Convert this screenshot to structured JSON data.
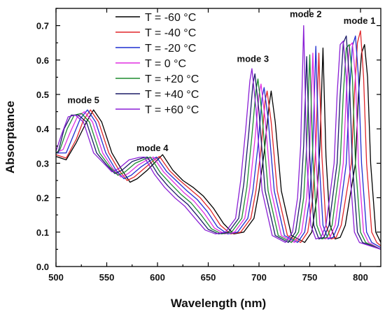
{
  "chart_data": {
    "type": "line",
    "title": "",
    "xlabel": "Wavelength (nm)",
    "ylabel": "Absorptance",
    "xlim": [
      500,
      820
    ],
    "ylim": [
      0.0,
      0.75
    ],
    "xticks": [
      500,
      550,
      600,
      650,
      700,
      750,
      800
    ],
    "yticks": [
      0.0,
      0.1,
      0.2,
      0.3,
      0.4,
      0.5,
      0.6,
      0.7
    ],
    "xtick_labels": [
      "500",
      "550",
      "600",
      "650",
      "700",
      "750",
      "800"
    ],
    "ytick_labels": [
      "0.0",
      "0.1",
      "0.2",
      "0.3",
      "0.4",
      "0.5",
      "0.6",
      "0.7"
    ],
    "grid": false,
    "legend_position": "top-left",
    "annotations": [
      {
        "text": "mode 5",
        "x": 527,
        "y": 0.475
      },
      {
        "text": "mode 4",
        "x": 595,
        "y": 0.335
      },
      {
        "text": "mode 3",
        "x": 694,
        "y": 0.595
      },
      {
        "text": "mode 2",
        "x": 746,
        "y": 0.725
      },
      {
        "text": "mode 1",
        "x": 799,
        "y": 0.705
      }
    ],
    "series": [
      {
        "name": "T = -60 °C",
        "color": "#000000",
        "x": [
          500,
          510,
          520,
          530,
          537,
          545,
          555,
          565,
          573,
          580,
          590,
          600,
          605,
          615,
          625,
          635,
          645,
          655,
          665,
          675,
          685,
          695,
          700,
          705,
          710,
          712,
          716,
          722,
          732,
          745,
          752,
          757,
          760,
          763,
          766,
          770,
          775,
          780,
          785,
          795,
          798,
          801,
          804,
          807,
          810,
          815,
          820
        ],
        "y": [
          0.32,
          0.31,
          0.36,
          0.42,
          0.455,
          0.42,
          0.33,
          0.28,
          0.245,
          0.255,
          0.28,
          0.31,
          0.325,
          0.28,
          0.25,
          0.23,
          0.205,
          0.17,
          0.125,
          0.095,
          0.1,
          0.14,
          0.22,
          0.33,
          0.47,
          0.51,
          0.42,
          0.22,
          0.09,
          0.07,
          0.1,
          0.2,
          0.35,
          0.635,
          0.32,
          0.12,
          0.08,
          0.085,
          0.12,
          0.3,
          0.5,
          0.62,
          0.645,
          0.55,
          0.3,
          0.1,
          0.07
        ]
      },
      {
        "name": "T = -40 °C",
        "color": "#e0262a",
        "x": [
          500,
          510,
          520,
          527,
          534,
          542,
          552,
          562,
          570,
          577,
          587,
          597,
          602,
          612,
          622,
          632,
          642,
          652,
          662,
          672,
          682,
          692,
          697,
          702,
          706,
          708,
          712,
          718,
          728,
          741,
          748,
          753,
          756,
          759,
          762,
          766,
          771,
          776,
          781,
          791,
          794,
          797,
          800,
          803,
          806,
          811,
          816,
          820
        ],
        "y": [
          0.325,
          0.315,
          0.37,
          0.425,
          0.455,
          0.42,
          0.33,
          0.28,
          0.25,
          0.26,
          0.285,
          0.31,
          0.32,
          0.278,
          0.25,
          0.225,
          0.2,
          0.165,
          0.12,
          0.095,
          0.1,
          0.14,
          0.22,
          0.34,
          0.48,
          0.51,
          0.42,
          0.22,
          0.09,
          0.07,
          0.1,
          0.2,
          0.35,
          0.62,
          0.32,
          0.12,
          0.08,
          0.085,
          0.12,
          0.3,
          0.5,
          0.65,
          0.685,
          0.55,
          0.3,
          0.1,
          0.07,
          0.06
        ]
      },
      {
        "name": "T = -20 °C",
        "color": "#1f2fd0",
        "x": [
          500,
          510,
          517,
          524,
          531,
          539,
          549,
          559,
          567,
          574,
          584,
          594,
          599,
          609,
          619,
          629,
          639,
          649,
          659,
          669,
          679,
          689,
          694,
          699,
          703,
          705,
          709,
          715,
          725,
          738,
          745,
          750,
          753,
          756,
          759,
          763,
          768,
          773,
          778,
          786,
          789,
          792,
          795,
          798,
          801,
          806,
          811,
          820
        ],
        "y": [
          0.33,
          0.33,
          0.38,
          0.43,
          0.455,
          0.42,
          0.33,
          0.28,
          0.255,
          0.265,
          0.29,
          0.31,
          0.318,
          0.276,
          0.248,
          0.22,
          0.195,
          0.16,
          0.115,
          0.095,
          0.1,
          0.14,
          0.22,
          0.35,
          0.49,
          0.52,
          0.43,
          0.22,
          0.09,
          0.07,
          0.1,
          0.2,
          0.35,
          0.64,
          0.32,
          0.12,
          0.08,
          0.085,
          0.12,
          0.3,
          0.5,
          0.64,
          0.67,
          0.55,
          0.3,
          0.1,
          0.07,
          0.055
        ]
      },
      {
        "name": "T =     0 °C",
        "color": "#e02fe0",
        "x": [
          500,
          507,
          514,
          521,
          528,
          536,
          546,
          556,
          564,
          571,
          581,
          591,
          596,
          606,
          616,
          626,
          636,
          646,
          656,
          666,
          676,
          686,
          691,
          696,
          700,
          702,
          706,
          712,
          722,
          735,
          742,
          747,
          750,
          753,
          756,
          760,
          765,
          770,
          775,
          783,
          786,
          789,
          792,
          795,
          798,
          803,
          808,
          820
        ],
        "y": [
          0.33,
          0.34,
          0.39,
          0.435,
          0.45,
          0.42,
          0.33,
          0.285,
          0.26,
          0.27,
          0.295,
          0.312,
          0.318,
          0.275,
          0.245,
          0.215,
          0.19,
          0.155,
          0.112,
          0.095,
          0.1,
          0.14,
          0.23,
          0.37,
          0.5,
          0.53,
          0.43,
          0.22,
          0.09,
          0.07,
          0.1,
          0.2,
          0.35,
          0.62,
          0.32,
          0.12,
          0.08,
          0.085,
          0.12,
          0.3,
          0.5,
          0.64,
          0.65,
          0.55,
          0.3,
          0.1,
          0.07,
          0.05
        ]
      },
      {
        "name": "T = +20 °C",
        "color": "#1e8c2e",
        "x": [
          500,
          504,
          511,
          518,
          525,
          533,
          543,
          553,
          561,
          568,
          578,
          588,
          593,
          603,
          613,
          623,
          633,
          643,
          653,
          663,
          673,
          683,
          688,
          693,
          697,
          699,
          703,
          709,
          719,
          732,
          739,
          744,
          747,
          750,
          753,
          757,
          762,
          767,
          772,
          780,
          783,
          786,
          789,
          792,
          795,
          800,
          805,
          820
        ],
        "y": [
          0.33,
          0.34,
          0.4,
          0.44,
          0.445,
          0.42,
          0.33,
          0.29,
          0.265,
          0.275,
          0.3,
          0.313,
          0.318,
          0.272,
          0.24,
          0.21,
          0.185,
          0.15,
          0.11,
          0.095,
          0.1,
          0.14,
          0.23,
          0.38,
          0.51,
          0.545,
          0.44,
          0.22,
          0.09,
          0.07,
          0.1,
          0.2,
          0.35,
          0.615,
          0.32,
          0.12,
          0.08,
          0.085,
          0.12,
          0.3,
          0.5,
          0.635,
          0.645,
          0.55,
          0.3,
          0.1,
          0.07,
          0.05
        ]
      },
      {
        "name": "T = +40 °C",
        "color": "#1a1a66",
        "x": [
          500,
          502,
          508,
          515,
          522,
          530,
          540,
          550,
          558,
          565,
          575,
          585,
          590,
          600,
          610,
          620,
          630,
          640,
          650,
          660,
          670,
          680,
          685,
          690,
          694,
          696,
          700,
          706,
          716,
          729,
          736,
          741,
          744,
          747,
          750,
          754,
          759,
          764,
          769,
          777,
          780,
          783,
          786,
          789,
          792,
          797,
          802,
          820
        ],
        "y": [
          0.33,
          0.33,
          0.4,
          0.44,
          0.44,
          0.42,
          0.33,
          0.295,
          0.27,
          0.28,
          0.305,
          0.315,
          0.318,
          0.27,
          0.235,
          0.205,
          0.18,
          0.145,
          0.108,
          0.095,
          0.1,
          0.14,
          0.24,
          0.39,
          0.53,
          0.56,
          0.45,
          0.22,
          0.09,
          0.07,
          0.1,
          0.2,
          0.35,
          0.61,
          0.32,
          0.12,
          0.08,
          0.085,
          0.12,
          0.3,
          0.5,
          0.65,
          0.67,
          0.55,
          0.3,
          0.1,
          0.07,
          0.05
        ]
      },
      {
        "name": "T = +60 °C",
        "color": "#8a1fd6",
        "x": [
          500,
          505,
          512,
          519,
          527,
          537,
          547,
          555,
          562,
          572,
          582,
          587,
          597,
          607,
          617,
          627,
          637,
          647,
          657,
          667,
          677,
          682,
          687,
          691,
          693,
          697,
          703,
          713,
          726,
          733,
          738,
          741,
          744,
          747,
          751,
          756,
          761,
          766,
          774,
          777,
          780,
          783,
          786,
          789,
          794,
          799,
          820
        ],
        "y": [
          0.335,
          0.38,
          0.435,
          0.44,
          0.42,
          0.33,
          0.3,
          0.275,
          0.285,
          0.31,
          0.317,
          0.318,
          0.268,
          0.23,
          0.2,
          0.175,
          0.14,
          0.106,
          0.095,
          0.1,
          0.14,
          0.25,
          0.4,
          0.54,
          0.575,
          0.46,
          0.22,
          0.09,
          0.07,
          0.1,
          0.2,
          0.35,
          0.7,
          0.32,
          0.12,
          0.08,
          0.085,
          0.12,
          0.3,
          0.5,
          0.645,
          0.655,
          0.55,
          0.3,
          0.1,
          0.07,
          0.05
        ]
      }
    ]
  }
}
